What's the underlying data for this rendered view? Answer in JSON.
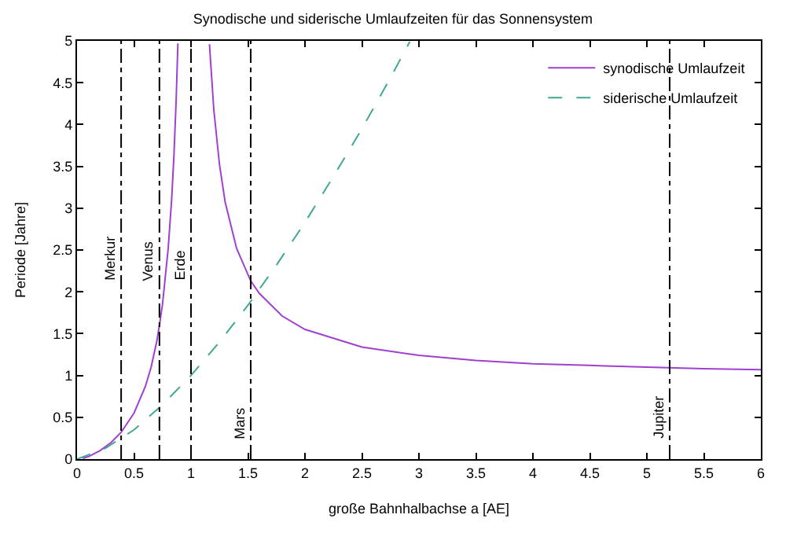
{
  "chart_data": {
    "type": "line",
    "title": "Synodische und siderische Umlaufzeiten für das Sonnensystem",
    "xlabel": "große Bahnhalbachse a [AE]",
    "ylabel": "Periode [Jahre]",
    "xlim": [
      0,
      6
    ],
    "ylim": [
      0,
      5
    ],
    "xticks": [
      0,
      0.5,
      1,
      1.5,
      2,
      2.5,
      3,
      3.5,
      4,
      4.5,
      5,
      5.5,
      6
    ],
    "yticks": [
      0,
      0.5,
      1,
      1.5,
      2,
      2.5,
      3,
      3.5,
      4,
      4.5,
      5
    ],
    "grid": false,
    "legend": "top right",
    "marker": "none",
    "series": [
      {
        "name": "synodische Umlaufzeit",
        "color": "#a040d0",
        "line_style": "solid",
        "x": [
          0.05,
          0.1,
          0.2,
          0.3,
          0.387,
          0.5,
          0.6,
          0.65,
          0.7,
          0.723,
          0.75,
          0.8,
          0.83,
          0.85,
          0.87,
          0.885,
          1.0,
          1.162,
          1.2,
          1.25,
          1.3,
          1.4,
          1.524,
          1.6,
          1.8,
          2.0,
          2.5,
          3.0,
          3.5,
          4.0,
          4.5,
          5.0,
          5.5,
          6.0
        ],
        "values": [
          0.01,
          0.03,
          0.1,
          0.2,
          0.32,
          0.55,
          0.87,
          1.1,
          1.41,
          1.6,
          1.85,
          2.52,
          3.1,
          3.62,
          4.3,
          4.97,
          null,
          4.96,
          4.18,
          3.52,
          3.07,
          2.52,
          2.13,
          1.98,
          1.71,
          1.55,
          1.34,
          1.24,
          1.18,
          1.14,
          1.12,
          1.1,
          1.08,
          1.07
        ]
      },
      {
        "name": "siderische Umlaufzeit",
        "color": "#40a890",
        "line_style": "dashed",
        "x": [
          0,
          0.25,
          0.5,
          0.75,
          1,
          1.25,
          1.5,
          1.75,
          2,
          2.25,
          2.5,
          2.75,
          2.92
        ],
        "values": [
          0,
          0.13,
          0.35,
          0.65,
          1,
          1.4,
          1.84,
          2.32,
          2.83,
          3.38,
          3.95,
          4.56,
          4.99
        ]
      }
    ],
    "ref_lines": [
      {
        "axis": "x",
        "value": 0.387,
        "label": "Merkur",
        "color": "#000000",
        "line_style": "dashdot"
      },
      {
        "axis": "x",
        "value": 0.723,
        "label": "Venus",
        "color": "#000000",
        "line_style": "dashdot"
      },
      {
        "axis": "x",
        "value": 1.0,
        "label": "Erde",
        "color": "#000000",
        "line_style": "dashdot"
      },
      {
        "axis": "x",
        "value": 1.524,
        "label": "Mars",
        "color": "#000000",
        "line_style": "dashdot"
      },
      {
        "axis": "x",
        "value": 5.2,
        "label": "Jupiter",
        "color": "#000000",
        "line_style": "dashdot"
      }
    ]
  }
}
